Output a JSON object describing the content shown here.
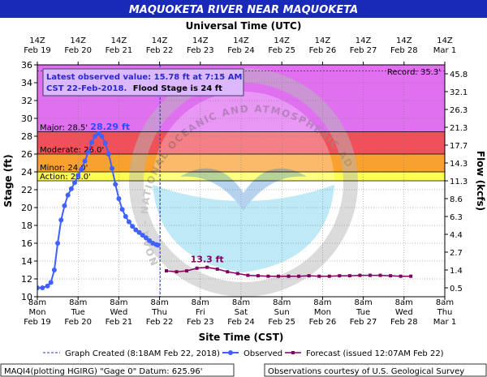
{
  "chart_data": {
    "type": "line",
    "title": "MAQUOKETA RIVER NEAR MAQUOKETA",
    "top_axis_title": "Universal Time (UTC)",
    "xlabel": "Site Time (CST)",
    "ylabel": "Stage (ft)",
    "y2label": "Flow (kcfs)",
    "ylim": [
      10,
      36
    ],
    "y_ticks": [
      10,
      12,
      14,
      16,
      18,
      20,
      22,
      24,
      26,
      28,
      30,
      32,
      34,
      36
    ],
    "x_unit": "hours since Feb 19 8am CST",
    "xlim": [
      0,
      240
    ],
    "x_ticks": [
      0,
      24,
      48,
      72,
      96,
      120,
      144,
      168,
      192,
      216,
      240
    ],
    "x_labels_bottom": [
      [
        "8am",
        "Mon",
        "Feb 19"
      ],
      [
        "8am",
        "Tue",
        "Feb 20"
      ],
      [
        "8am",
        "Wed",
        "Feb 21"
      ],
      [
        "8am",
        "Thu",
        "Feb 22"
      ],
      [
        "8am",
        "Fri",
        "Feb 23"
      ],
      [
        "8am",
        "Sat",
        "Feb 24"
      ],
      [
        "8am",
        "Sun",
        "Feb 25"
      ],
      [
        "8am",
        "Mon",
        "Feb 26"
      ],
      [
        "8am",
        "Tue",
        "Feb 27"
      ],
      [
        "8am",
        "Wed",
        "Feb 28"
      ],
      [
        "8am",
        "Thu",
        "Mar 1"
      ]
    ],
    "x_labels_top": [
      [
        "14Z",
        "Feb 19"
      ],
      [
        "14Z",
        "Feb 20"
      ],
      [
        "14Z",
        "Feb 21"
      ],
      [
        "14Z",
        "Feb 22"
      ],
      [
        "14Z",
        "Feb 23"
      ],
      [
        "14Z",
        "Feb 24"
      ],
      [
        "14Z",
        "Feb 25"
      ],
      [
        "14Z",
        "Feb 26"
      ],
      [
        "14Z",
        "Feb 27"
      ],
      [
        "14Z",
        "Feb 28"
      ],
      [
        "14Z",
        "Mar 1"
      ]
    ],
    "flow_ticks": [
      {
        "stage": 11,
        "label": "0.5"
      },
      {
        "stage": 13,
        "label": "1.4"
      },
      {
        "stage": 15,
        "label": "2.7"
      },
      {
        "stage": 17,
        "label": "4.4"
      },
      {
        "stage": 19,
        "label": "6.3"
      },
      {
        "stage": 21,
        "label": "8.6"
      },
      {
        "stage": 23,
        "label": "11.3"
      },
      {
        "stage": 25,
        "label": "14.3"
      },
      {
        "stage": 27,
        "label": "17.7"
      },
      {
        "stage": 29,
        "label": "21.3"
      },
      {
        "stage": 31,
        "label": "26.3"
      },
      {
        "stage": 33,
        "label": "32.1"
      },
      {
        "stage": 35,
        "label": "45.8"
      }
    ],
    "flood_categories": [
      {
        "label": "Major: 28.5'",
        "from": 28.5,
        "to": 36,
        "color": "#e070f0"
      },
      {
        "label": "Moderate: 26.0'",
        "from": 26.0,
        "to": 28.5,
        "color": "#f0505a"
      },
      {
        "label": "Minor: 24.0'",
        "from": 24.0,
        "to": 26.0,
        "color": "#f8a030"
      },
      {
        "label": "Action: 23.0'",
        "from": 23.0,
        "to": 24.0,
        "color": "#ffff50"
      }
    ],
    "record": {
      "label": "Record: 35.3'",
      "value": 35.3
    },
    "observed_info": {
      "line1": "Latest observed value: 15.78 ft at 7:15 AM",
      "line2": "CST 22-Feb-2018.",
      "line3": "Flood Stage is 24 ft"
    },
    "crest_label": "28.29 ft",
    "forecast_crest_label": "13.3 ft",
    "graph_created_x": 72.3,
    "series": [
      {
        "name": "Observed",
        "color": "#4060ff",
        "x": [
          0,
          3,
          6,
          8,
          10,
          12,
          14,
          16,
          18,
          20,
          22,
          24,
          26,
          28,
          30,
          32,
          34,
          36,
          38,
          40,
          42,
          44,
          46,
          48,
          50,
          52,
          54,
          56,
          58,
          60,
          62,
          64,
          66,
          68,
          70,
          71
        ],
        "y": [
          11.0,
          11.0,
          11.2,
          11.6,
          13.0,
          16.0,
          18.6,
          20.2,
          21.4,
          22.1,
          22.8,
          23.6,
          24.3,
          25.2,
          26.2,
          27.3,
          28.0,
          28.29,
          28.0,
          27.2,
          26.0,
          24.4,
          22.6,
          21.0,
          19.8,
          19.0,
          18.4,
          17.9,
          17.5,
          17.2,
          16.9,
          16.6,
          16.3,
          16.0,
          15.85,
          15.78
        ]
      },
      {
        "name": "Forecast (issued 12:07AM Feb 22)",
        "color": "#800060",
        "x": [
          76,
          82,
          88,
          94,
          100,
          106,
          112,
          118,
          124,
          130,
          136,
          142,
          148,
          154,
          160,
          166,
          172,
          178,
          184,
          190,
          196,
          202,
          208,
          214,
          220
        ],
        "y": [
          12.9,
          12.8,
          12.9,
          13.2,
          13.3,
          13.1,
          12.8,
          12.6,
          12.4,
          12.35,
          12.3,
          12.3,
          12.3,
          12.3,
          12.35,
          12.3,
          12.3,
          12.35,
          12.35,
          12.4,
          12.4,
          12.4,
          12.35,
          12.3,
          12.3
        ]
      }
    ],
    "legend": {
      "graph_created": "Graph Created (8:18AM Feb 22, 2018)",
      "observed": "Observed",
      "forecast": "Forecast (issued 12:07AM Feb 22)"
    },
    "footer_left": "MAQI4(plotting HGIRG) \"Gage 0\" Datum: 625.96'",
    "footer_right": "Observations courtesy of U.S. Geological Survey",
    "watermark": "NOAA - NATIONAL OCEANIC AND ATMOSPHERIC ADMINISTRATION - U.S. DEPARTMENT OF COMMERCE"
  }
}
